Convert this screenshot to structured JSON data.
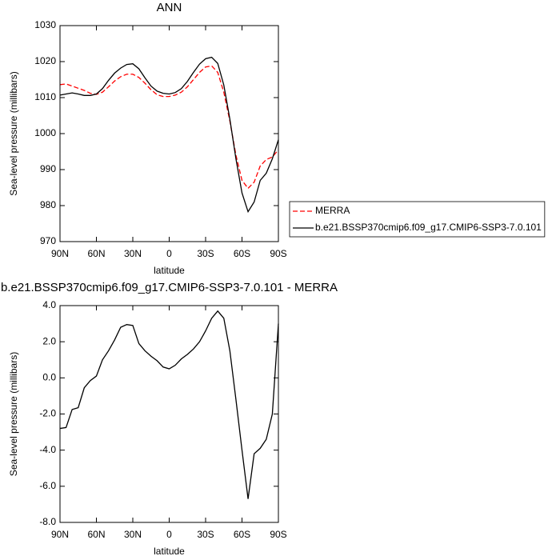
{
  "chart_data": [
    {
      "type": "line",
      "title": "ANN",
      "xlabel": "latitude",
      "ylabel": "Sea-level pressure (millibars)",
      "x": [
        90,
        85,
        80,
        75,
        70,
        65,
        60,
        55,
        50,
        45,
        40,
        35,
        30,
        25,
        20,
        15,
        10,
        5,
        0,
        -5,
        -10,
        -15,
        -20,
        -25,
        -30,
        -35,
        -40,
        -45,
        -50,
        -55,
        -60,
        -65,
        -70,
        -75,
        -80,
        -85,
        -90
      ],
      "series": [
        {
          "name": "MERRA",
          "color": "#ff0000",
          "style": "dashed",
          "values": [
            1013.6,
            1013.8,
            1013.2,
            1012.6,
            1012.0,
            1011.2,
            1010.9,
            1011.5,
            1013.0,
            1014.6,
            1015.8,
            1016.5,
            1016.5,
            1015.6,
            1014.0,
            1012.2,
            1010.8,
            1010.3,
            1010.3,
            1010.7,
            1011.5,
            1013.0,
            1015.0,
            1017.0,
            1018.5,
            1018.8,
            1017.0,
            1011.5,
            1003.5,
            994.0,
            987.0,
            984.8,
            986.5,
            991.0,
            992.8,
            993.5,
            995.5
          ]
        },
        {
          "name": "b.e21.BSSP370cmip6.f09_g17.CMIP6-SSP3-7.0.101",
          "color": "#000000",
          "style": "solid",
          "values": [
            1010.7,
            1011.0,
            1011.3,
            1011.0,
            1010.6,
            1010.6,
            1011.0,
            1012.5,
            1014.8,
            1016.8,
            1018.2,
            1019.2,
            1019.4,
            1018.0,
            1015.5,
            1013.2,
            1011.8,
            1011.2,
            1011.0,
            1011.4,
            1012.5,
            1014.5,
            1017.0,
            1019.3,
            1020.8,
            1021.2,
            1019.5,
            1013.5,
            1004.0,
            993.0,
            983.5,
            978.3,
            981.0,
            987.0,
            989.0,
            993.0,
            998.3
          ]
        }
      ],
      "xlim": [
        90,
        -90
      ],
      "xticks": [
        {
          "value": 90,
          "label": "90N"
        },
        {
          "value": 60,
          "label": "60N"
        },
        {
          "value": 30,
          "label": "30N"
        },
        0,
        {
          "value": -30,
          "label": "30S"
        },
        {
          "value": -60,
          "label": "60S"
        },
        {
          "value": -90,
          "label": "90S"
        }
      ],
      "ylim": [
        970,
        1030
      ],
      "yticks": [
        970,
        980,
        990,
        1000,
        1010,
        1020,
        1030
      ],
      "legend": "outside-right"
    },
    {
      "type": "line",
      "title": "b.e21.BSSP370cmip6.f09_g17.CMIP6-SSP3-7.0.101 - MERRA",
      "xlabel": "latitude",
      "ylabel": "Sea-level pressure (millibars)",
      "x": [
        90,
        85,
        80,
        75,
        70,
        65,
        60,
        55,
        50,
        45,
        40,
        35,
        30,
        25,
        20,
        15,
        10,
        5,
        0,
        -5,
        -10,
        -15,
        -20,
        -25,
        -30,
        -35,
        -40,
        -45,
        -50,
        -55,
        -60,
        -65,
        -70,
        -75,
        -80,
        -85,
        -90
      ],
      "series": [
        {
          "color": "#000000",
          "style": "solid",
          "values": [
            -2.8,
            -2.75,
            -1.75,
            -1.65,
            -0.55,
            -0.15,
            0.1,
            1.0,
            1.5,
            2.1,
            2.8,
            2.95,
            2.9,
            1.9,
            1.5,
            1.2,
            0.95,
            0.6,
            0.5,
            0.7,
            1.05,
            1.3,
            1.6,
            2.0,
            2.6,
            3.3,
            3.7,
            3.3,
            1.5,
            -1.2,
            -4.0,
            -6.7,
            -4.2,
            -3.9,
            -3.4,
            -2.0,
            3.0
          ]
        }
      ],
      "xlim": [
        90,
        -90
      ],
      "xticks": [
        {
          "value": 90,
          "label": "90N"
        },
        {
          "value": 60,
          "label": "60N"
        },
        {
          "value": 30,
          "label": "30N"
        },
        0,
        {
          "value": -30,
          "label": "30S"
        },
        {
          "value": -60,
          "label": "60S"
        },
        {
          "value": -90,
          "label": "90S"
        }
      ],
      "ylim": [
        -8,
        4
      ],
      "yticks": [
        {
          "value": -8,
          "label": "-8.0"
        },
        {
          "value": -6,
          "label": "-6.0"
        },
        {
          "value": -4,
          "label": "-4.0"
        },
        {
          "value": -2,
          "label": "-2.0"
        },
        {
          "value": 0,
          "label": "0.0"
        },
        {
          "value": 2,
          "label": "2.0"
        },
        {
          "value": 4,
          "label": "4.0"
        }
      ]
    }
  ]
}
